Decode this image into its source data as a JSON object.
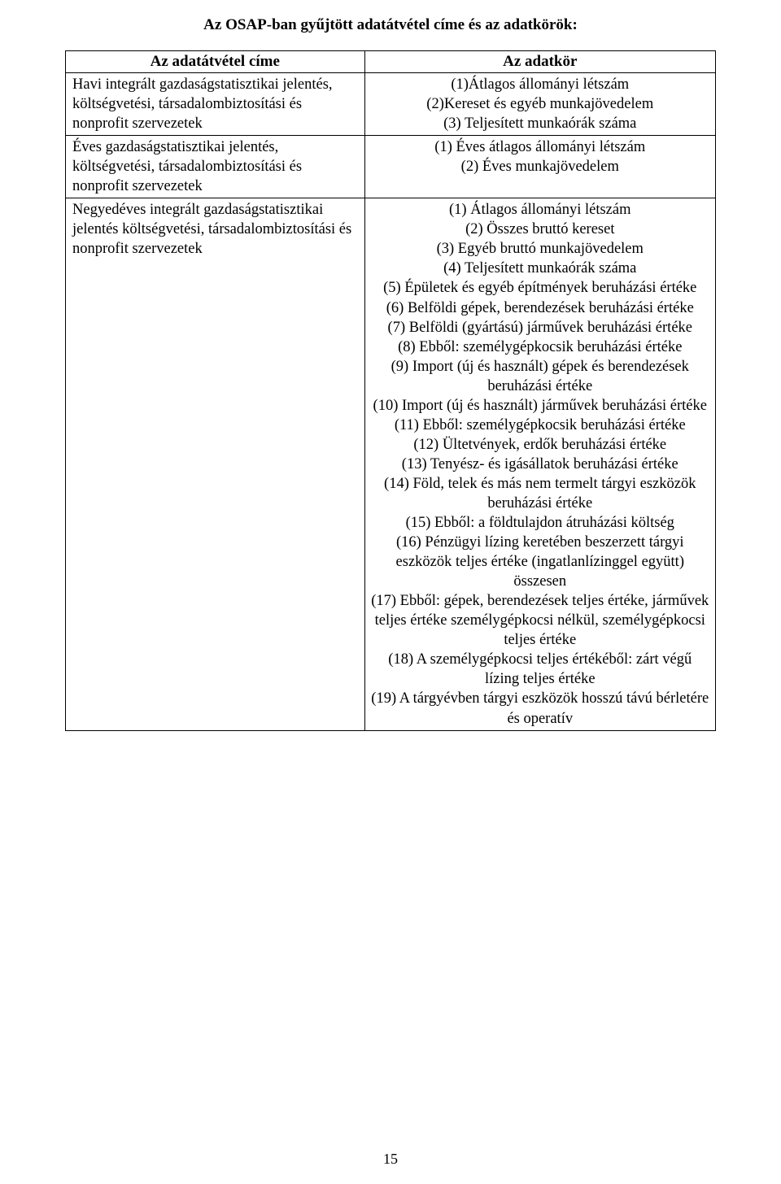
{
  "page": {
    "title": "Az OSAP-ban gyűjtött adatátvétel címe és az adatkörök:",
    "number": "15"
  },
  "table": {
    "headers": {
      "left": "Az adatátvétel címe",
      "right": "Az adatkör"
    },
    "rows": [
      {
        "left": "Havi integrált gazdaságstatisztikai jelentés, költségvetési, társadalombiztosítási és nonprofit szervezetek",
        "right": [
          "(1)Átlagos állományi létszám",
          "(2)Kereset és egyéb munkajövedelem",
          "(3) Teljesített munkaórák száma"
        ]
      },
      {
        "left": "Éves gazdaságstatisztikai jelentés, költségvetési, társadalombiztosítási és nonprofit szervezetek",
        "right": [
          "(1) Éves átlagos állományi létszám",
          "(2) Éves munkajövedelem"
        ]
      },
      {
        "left": "Negyedéves integrált gazdaságstatisztikai jelentés költségvetési, társadalombiztosítási és nonprofit szervezetek",
        "right": [
          "(1) Átlagos állományi létszám",
          "(2) Összes bruttó kereset",
          "(3) Egyéb bruttó munkajövedelem",
          "(4) Teljesített munkaórák száma",
          "(5) Épületek és egyéb építmények beruházási értéke",
          "(6) Belföldi gépek, berendezések beruházási értéke",
          "(7) Belföldi (gyártású) járművek beruházási értéke",
          "(8) Ebből: személygépkocsik beruházási értéke",
          "(9) Import (új és használt) gépek és berendezések beruházási értéke",
          "(10) Import (új és használt) járművek beruházási értéke",
          "(11) Ebből: személygépkocsik beruházási értéke",
          "(12) Ültetvények, erdők beruházási értéke",
          "(13) Tenyész- és igásállatok beruházási értéke",
          "(14) Föld, telek és más nem termelt tárgyi eszközök beruházási értéke",
          "(15) Ebből: a földtulajdon átruházási költség",
          "(16) Pénzügyi lízing keretében beszerzett tárgyi eszközök teljes értéke (ingatlanlízinggel együtt) összesen",
          "(17) Ebből: gépek, berendezések teljes értéke, járművek teljes értéke személygépkocsi nélkül, személygépkocsi teljes értéke",
          "(18) A személygépkocsi teljes értékéből: zárt végű lízing teljes értéke",
          "(19) A tárgyévben tárgyi eszközök hosszú távú bérletére és operatív"
        ]
      }
    ]
  }
}
